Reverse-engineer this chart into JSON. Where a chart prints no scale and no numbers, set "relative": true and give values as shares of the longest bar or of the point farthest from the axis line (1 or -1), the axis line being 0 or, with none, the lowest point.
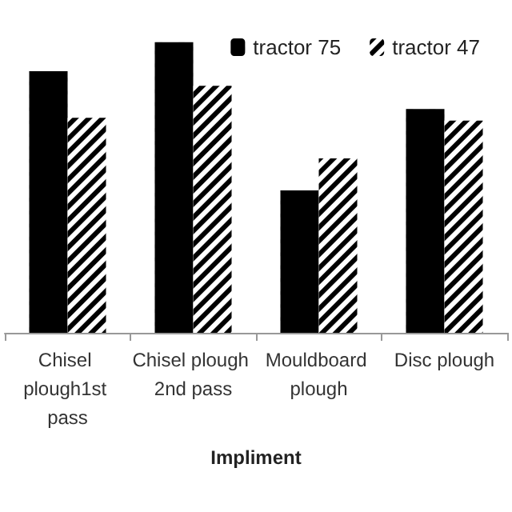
{
  "chart_data": {
    "type": "bar",
    "xlabel": "Impliment",
    "relative": true,
    "legend": "top right",
    "categories": [
      "Chisel plough1st pass",
      "Chisel plough 2nd pass",
      "Mouldboard plough",
      "Disc plough"
    ],
    "series": [
      {
        "name": "tractor 75",
        "color": "#000000",
        "values": [
          0.9,
          1,
          0.49,
          0.77
        ]
      },
      {
        "name": "tractor 47",
        "color": "#000000",
        "values": [
          0.74,
          0.85,
          0.6,
          0.73
        ]
      }
    ]
  }
}
